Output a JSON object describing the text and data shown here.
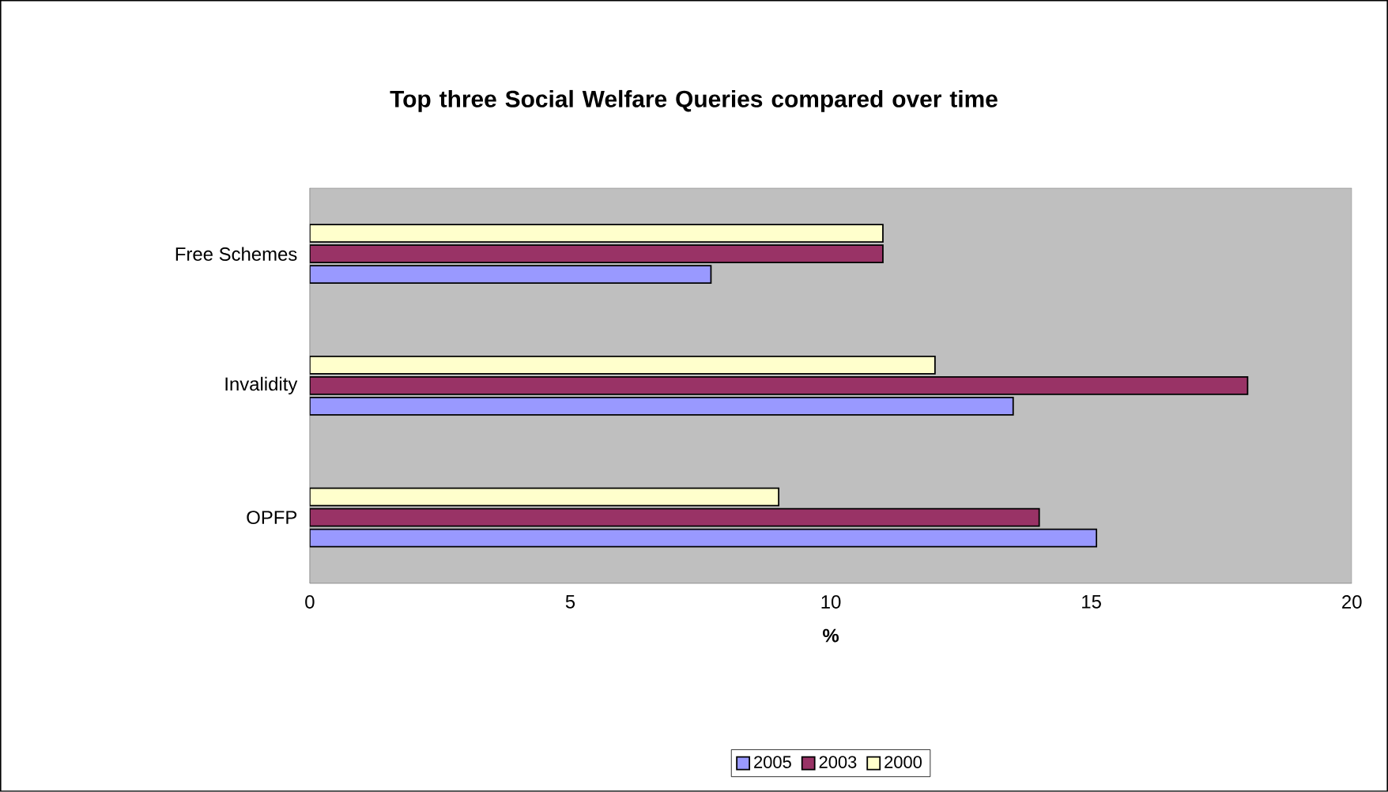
{
  "chart_data": {
    "type": "bar",
    "orientation": "horizontal",
    "title": "Top three Social Welfare Queries compared over time",
    "xlabel": "%",
    "categories": [
      "Free Schemes",
      "Invalidity",
      "OPFP"
    ],
    "series": [
      {
        "name": "2005",
        "color": "#9999ff",
        "values": [
          7.7,
          13.5,
          15.1
        ]
      },
      {
        "name": "2003",
        "color": "#993366",
        "values": [
          11,
          18,
          14
        ]
      },
      {
        "name": "2000",
        "color": "#ffffcc",
        "values": [
          11,
          12,
          9
        ]
      }
    ],
    "xlim": [
      0,
      20
    ],
    "xticks": [
      0,
      5,
      10,
      15,
      20
    ],
    "legend": "bottom"
  }
}
